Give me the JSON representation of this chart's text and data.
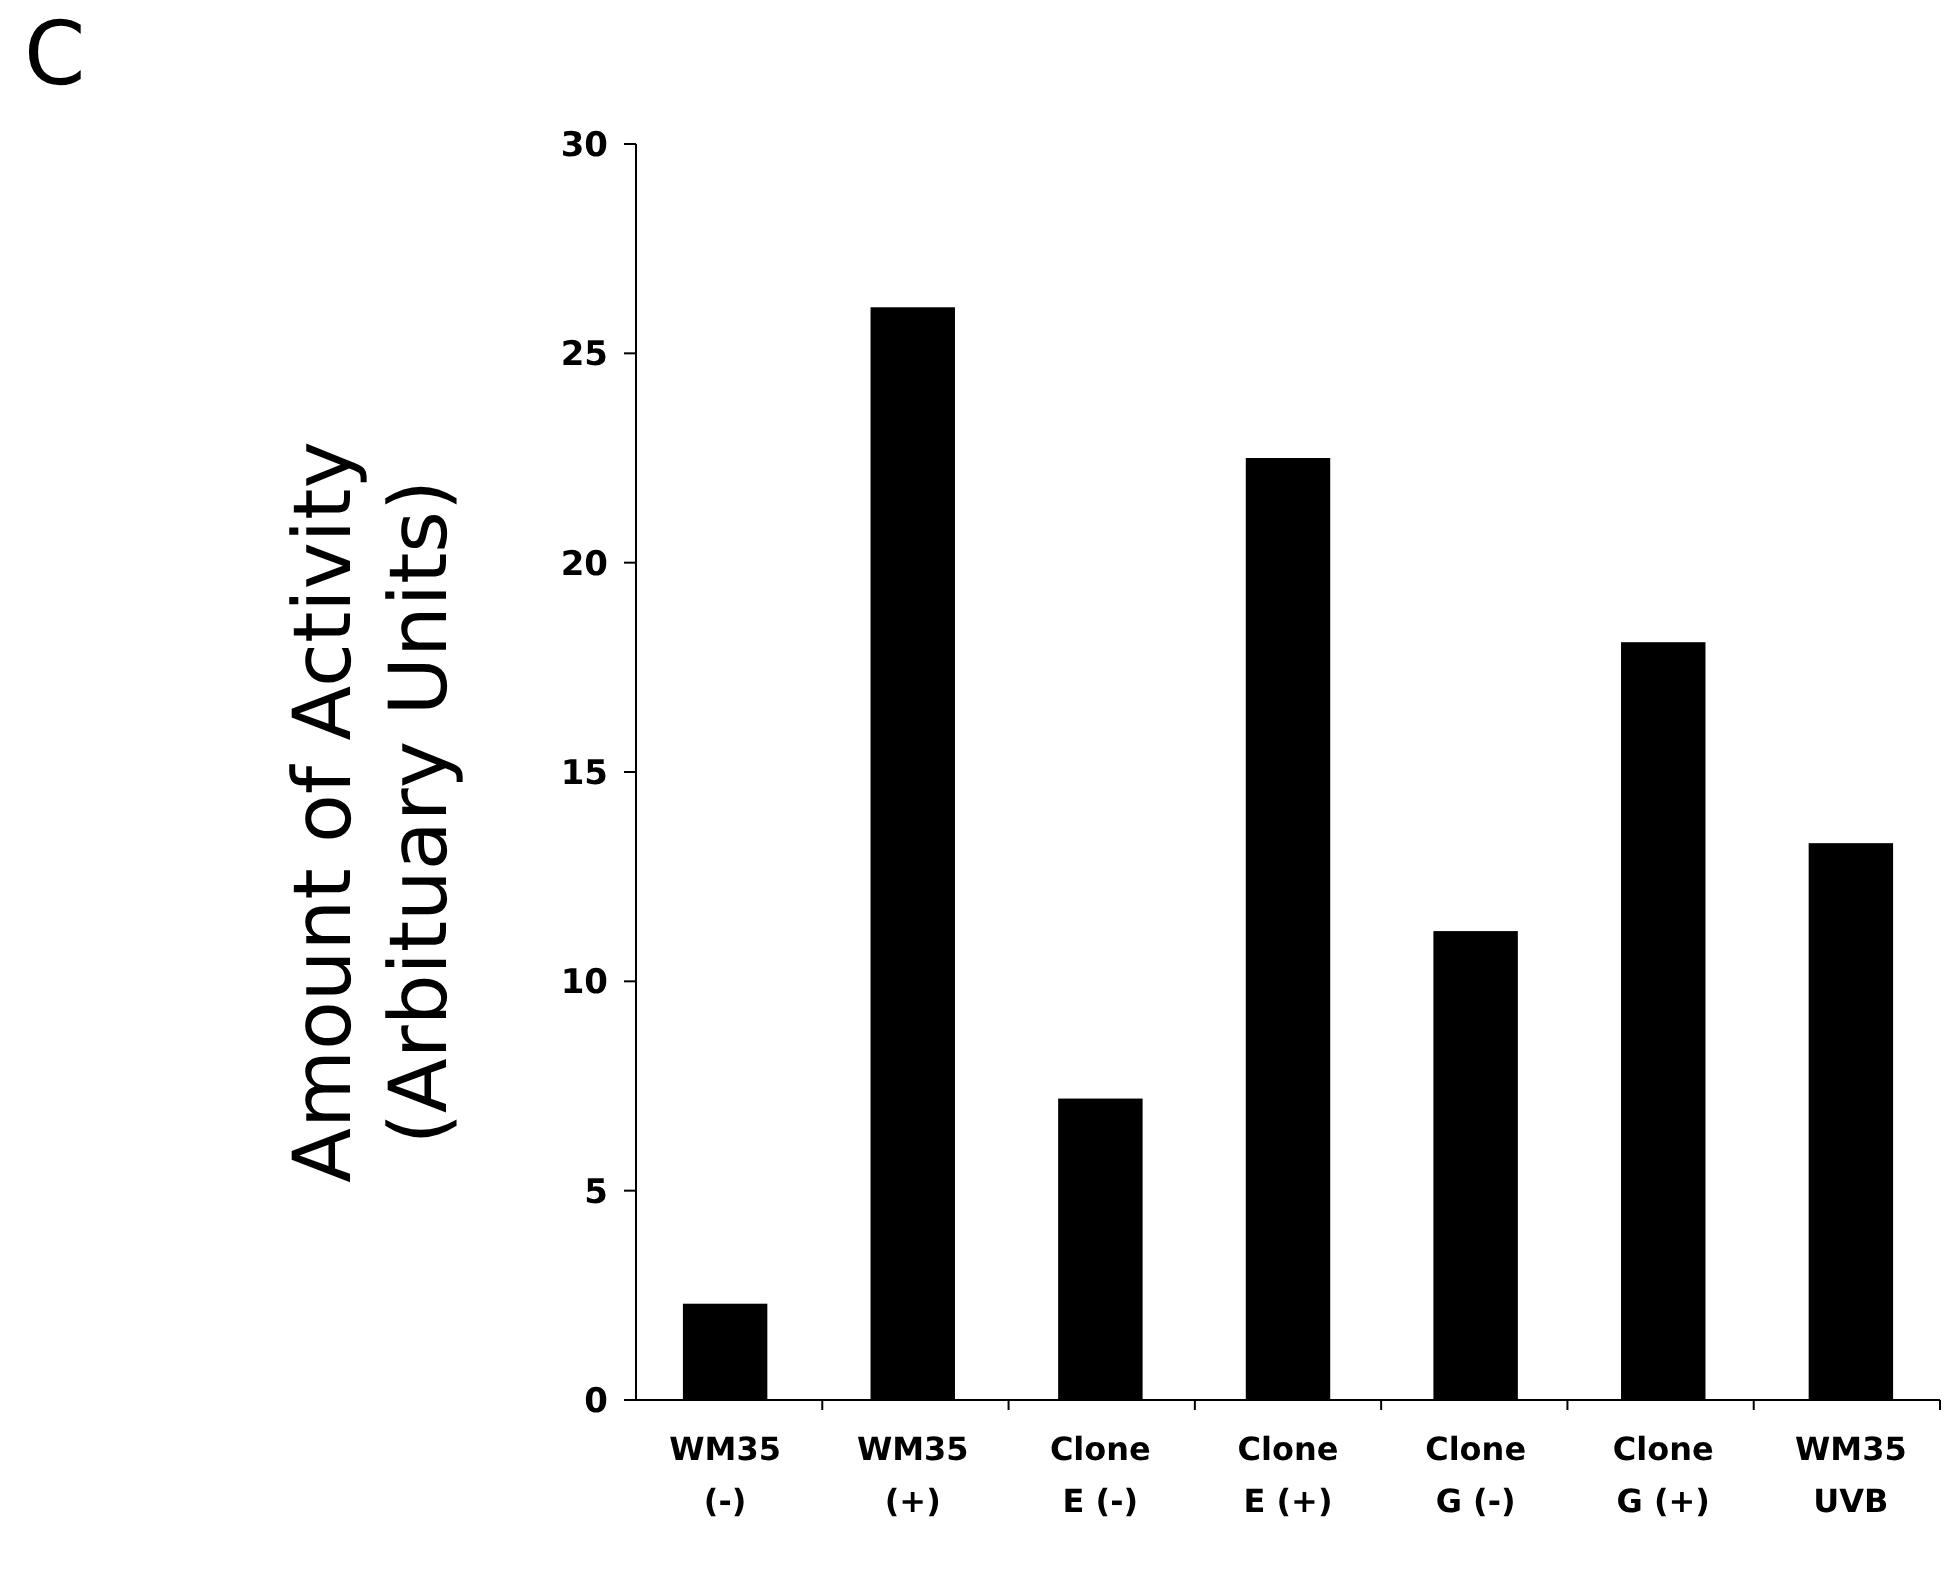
{
  "chart_data": {
    "type": "bar",
    "ylabel": "Amount of Activity\n(Arbituary Units)",
    "annotations": [
      "C"
    ],
    "categories": [
      "WM35\n(-)",
      "WM35\n(+)",
      "Clone\nE (-)",
      "Clone\nE (+)",
      "Clone\nG (-)",
      "Clone\nG (+)",
      "WM35\nUVB"
    ],
    "values": [
      2.3,
      26.1,
      7.2,
      22.5,
      11.2,
      18.1,
      13.3
    ],
    "color": "#000000",
    "ylim": [
      0,
      30
    ],
    "yticks": [
      0,
      5,
      10,
      15,
      20,
      25,
      30
    ],
    "grid": false
  }
}
